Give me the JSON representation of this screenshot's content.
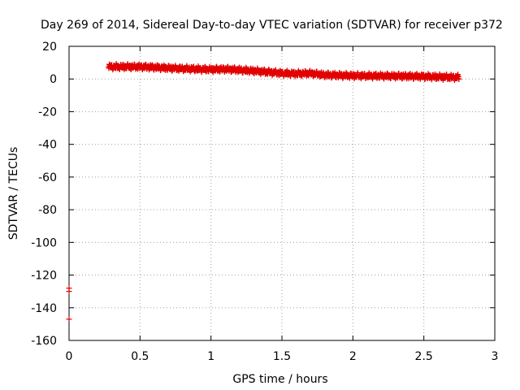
{
  "chart_data": {
    "type": "scatter",
    "title": "Day 269 of 2014, Sidereal Day-to-day VTEC variation (SDTVAR) for receiver p372",
    "xlabel": "GPS time / hours",
    "ylabel": "SDTVAR / TECUs",
    "xlim": [
      0,
      3
    ],
    "ylim": [
      -160,
      20
    ],
    "xticks": [
      "0",
      "0.5",
      "1",
      "1.5",
      "2",
      "2.5",
      "3"
    ],
    "xtick_values": [
      0,
      0.5,
      1,
      1.5,
      2,
      2.5,
      3
    ],
    "yticks": [
      "20",
      "0",
      "-20",
      "-40",
      "-60",
      "-80",
      "-100",
      "-120",
      "-140",
      "-160"
    ],
    "ytick_values": [
      20,
      0,
      -20,
      -40,
      -60,
      -80,
      -100,
      -120,
      -140,
      -160
    ],
    "grid": true,
    "marker": "+",
    "color": "#e00000",
    "series": [
      {
        "name": "SDTVAR",
        "trend": [
          [
            0.28,
            7.5
          ],
          [
            0.5,
            7.5
          ],
          [
            0.75,
            6.5
          ],
          [
            1.0,
            5.8
          ],
          [
            1.1,
            6.0
          ],
          [
            1.3,
            5.0
          ],
          [
            1.5,
            3.5
          ],
          [
            1.6,
            3.2
          ],
          [
            1.7,
            3.5
          ],
          [
            1.8,
            2.5
          ],
          [
            2.0,
            2.0
          ],
          [
            2.3,
            1.8
          ],
          [
            2.5,
            1.5
          ],
          [
            2.75,
            1.0
          ]
        ],
        "outliers": [
          [
            0.0,
            -128
          ],
          [
            0.0,
            -130
          ],
          [
            0.0,
            -147
          ]
        ]
      }
    ]
  }
}
